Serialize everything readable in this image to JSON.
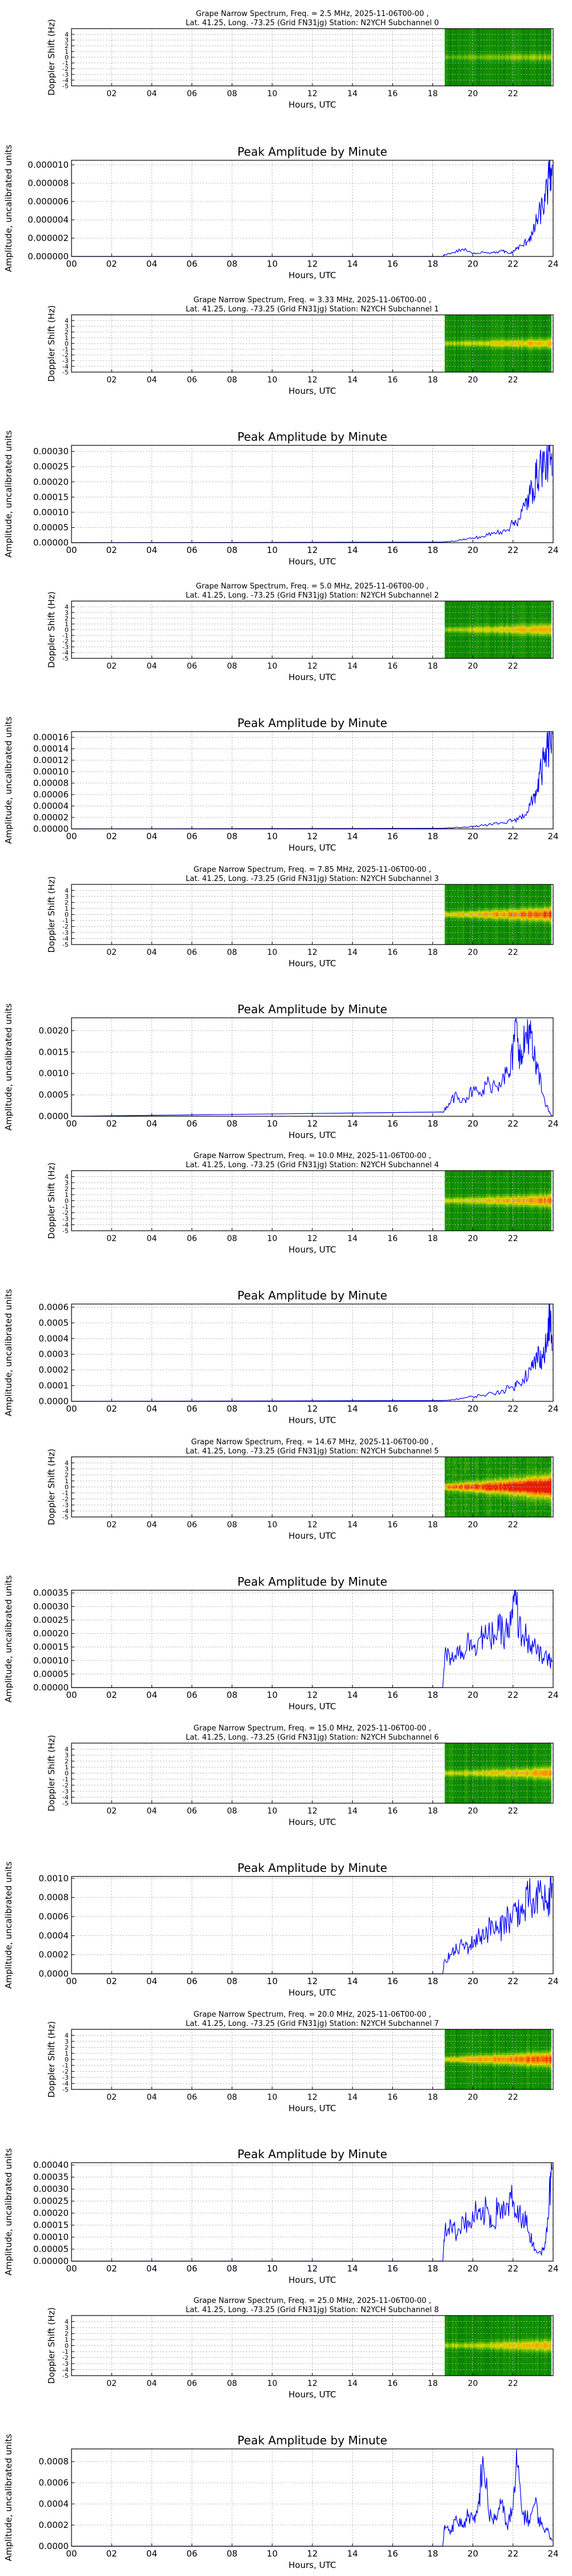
{
  "chart_data": [
    {
      "type": "heatmap",
      "title_line1": "Grape Narrow Spectrum, Freq. = 2.5 MHz, 2025-11-06T00-00 ,",
      "title_line2": "Lat.  41.25, Long. -73.25 (Grid FN31jg) Station: N2YCH Subchannel 0",
      "xlabel": "Hours, UTC",
      "ylabel": "Doppler Shift (Hz)",
      "xticks": [
        "02",
        "04",
        "06",
        "08",
        "10",
        "12",
        "14",
        "16",
        "18",
        "20",
        "22"
      ],
      "yticks": [
        "-5",
        "-4",
        "-3",
        "-2",
        "-1",
        "0",
        "1",
        "2",
        "3",
        "4"
      ],
      "xlim": [
        0,
        24
      ],
      "ylim": [
        -5,
        5
      ],
      "data_start_hour": 18.6,
      "data_end_hour": 23.9,
      "colormap": "green-yellow-red",
      "trace_doppler_hz": 0,
      "trace_intensity": 0.35,
      "spread": 0.15
    },
    {
      "type": "line",
      "title": "Peak Amplitude by Minute",
      "xlabel": "Hours, UTC",
      "ylabel": "Amplitude, uncalibrated units",
      "xticks": [
        "00",
        "02",
        "04",
        "06",
        "08",
        "10",
        "12",
        "14",
        "16",
        "18",
        "20",
        "22",
        "24"
      ],
      "yticks": [
        "0.000000",
        "0.000002",
        "0.000004",
        "0.000006",
        "0.000008",
        "0.000010"
      ],
      "xlim": [
        0,
        24
      ],
      "ylim": [
        0,
        1.05e-05
      ],
      "grid": true,
      "x": [
        0,
        18.5,
        18.6,
        19.0,
        19.5,
        20.0,
        20.5,
        21.0,
        21.5,
        21.8,
        22.0,
        22.2,
        22.5,
        22.8,
        23.0,
        23.2,
        23.4,
        23.6,
        23.8,
        23.95
      ],
      "y": [
        0,
        0,
        2e-07,
        4e-07,
        8e-07,
        3e-07,
        5e-07,
        4e-07,
        6e-07,
        3e-07,
        5e-07,
        9e-07,
        1.2e-06,
        2e-06,
        2.5e-06,
        4e-06,
        5e-06,
        6e-06,
        8.5e-06,
        1e-05
      ]
    },
    {
      "type": "heatmap",
      "title_line1": "Grape Narrow Spectrum, Freq. = 3.33 MHz, 2025-11-06T00-00 ,",
      "title_line2": "Lat.  41.25, Long. -73.25 (Grid FN31jg) Station: N2YCH Subchannel 1",
      "xlabel": "Hours, UTC",
      "ylabel": "Doppler Shift (Hz)",
      "xticks": [
        "02",
        "04",
        "06",
        "08",
        "10",
        "12",
        "14",
        "16",
        "18",
        "20",
        "22"
      ],
      "yticks": [
        "-5",
        "-4",
        "-3",
        "-2",
        "-1",
        "0",
        "1",
        "2",
        "3",
        "4"
      ],
      "xlim": [
        0,
        24
      ],
      "ylim": [
        -5,
        5
      ],
      "data_start_hour": 18.6,
      "data_end_hour": 23.9,
      "colormap": "green-yellow-red",
      "trace_doppler_hz": 0,
      "trace_intensity": 0.55,
      "spread": 0.3
    },
    {
      "type": "line",
      "title": "Peak Amplitude by Minute",
      "xlabel": "Hours, UTC",
      "ylabel": "Amplitude, uncalibrated units",
      "xticks": [
        "00",
        "02",
        "04",
        "06",
        "08",
        "10",
        "12",
        "14",
        "16",
        "18",
        "20",
        "22",
        "24"
      ],
      "yticks": [
        "0.00000",
        "0.00005",
        "0.00010",
        "0.00015",
        "0.00020",
        "0.00025",
        "0.00030"
      ],
      "xlim": [
        0,
        24
      ],
      "ylim": [
        0,
        0.00032
      ],
      "grid": true,
      "x": [
        0,
        18.5,
        19.0,
        19.5,
        20.0,
        20.5,
        21.0,
        21.5,
        22.0,
        22.3,
        22.6,
        22.8,
        23.0,
        23.2,
        23.4,
        23.6,
        23.8,
        23.95
      ],
      "y": [
        0,
        2e-06,
        5e-06,
        1e-05,
        1.5e-05,
        2e-05,
        3e-05,
        4e-05,
        6e-05,
        8e-05,
        0.00012,
        0.00015,
        0.00018,
        0.00022,
        0.00026,
        0.00025,
        0.0003,
        0.00022
      ]
    },
    {
      "type": "heatmap",
      "title_line1": "Grape Narrow Spectrum, Freq. = 5.0 MHz, 2025-11-06T00-00 ,",
      "title_line2": "Lat.  41.25, Long. -73.25 (Grid FN31jg) Station: N2YCH Subchannel 2",
      "xlabel": "Hours, UTC",
      "ylabel": "Doppler Shift (Hz)",
      "xticks": [
        "02",
        "04",
        "06",
        "08",
        "10",
        "12",
        "14",
        "16",
        "18",
        "20",
        "22"
      ],
      "yticks": [
        "-5",
        "-4",
        "-3",
        "-2",
        "-1",
        "0",
        "1",
        "2",
        "3",
        "4"
      ],
      "xlim": [
        0,
        24
      ],
      "ylim": [
        -5,
        5
      ],
      "data_start_hour": 18.6,
      "data_end_hour": 23.9,
      "colormap": "green-yellow-red",
      "trace_doppler_hz": 0,
      "trace_intensity": 0.55,
      "spread": 0.35
    },
    {
      "type": "line",
      "title": "Peak Amplitude by Minute",
      "xlabel": "Hours, UTC",
      "ylabel": "Amplitude, uncalibrated units",
      "xticks": [
        "00",
        "02",
        "04",
        "06",
        "08",
        "10",
        "12",
        "14",
        "16",
        "18",
        "20",
        "22",
        "24"
      ],
      "yticks": [
        "0.00000",
        "0.00002",
        "0.00004",
        "0.00006",
        "0.00008",
        "0.00010",
        "0.00012",
        "0.00014",
        "0.00016"
      ],
      "xlim": [
        0,
        24
      ],
      "ylim": [
        0,
        0.00017
      ],
      "grid": true,
      "x": [
        0,
        18.5,
        19.0,
        19.5,
        20.0,
        20.5,
        21.0,
        21.5,
        22.0,
        22.4,
        22.7,
        23.0,
        23.2,
        23.4,
        23.6,
        23.8,
        23.95
      ],
      "y": [
        0,
        1e-06,
        2e-06,
        3e-06,
        4e-06,
        6e-06,
        8e-06,
        1e-05,
        1.5e-05,
        2e-05,
        3e-05,
        5e-05,
        7e-05,
        0.0001,
        0.00012,
        0.00015,
        0.000165
      ]
    },
    {
      "type": "heatmap",
      "title_line1": "Grape Narrow Spectrum, Freq. = 7.85 MHz, 2025-11-06T00-00 ,",
      "title_line2": "Lat.  41.25, Long. -73.25 (Grid FN31jg) Station: N2YCH Subchannel 3",
      "xlabel": "Hours, UTC",
      "ylabel": "Doppler Shift (Hz)",
      "xticks": [
        "02",
        "04",
        "06",
        "08",
        "10",
        "12",
        "14",
        "16",
        "18",
        "20",
        "22"
      ],
      "yticks": [
        "-5",
        "-4",
        "-3",
        "-2",
        "-1",
        "0",
        "1",
        "2",
        "3",
        "4"
      ],
      "xlim": [
        0,
        24
      ],
      "ylim": [
        -5,
        5
      ],
      "data_start_hour": 18.6,
      "data_end_hour": 23.9,
      "colormap": "green-yellow-red",
      "trace_doppler_hz": 0,
      "trace_intensity": 0.75,
      "spread": 0.45
    },
    {
      "type": "line",
      "title": "Peak Amplitude by Minute",
      "xlabel": "Hours, UTC",
      "ylabel": "Amplitude, uncalibrated units",
      "xticks": [
        "00",
        "02",
        "04",
        "06",
        "08",
        "10",
        "12",
        "14",
        "16",
        "18",
        "20",
        "22",
        "24"
      ],
      "yticks": [
        "0.0000",
        "0.0005",
        "0.0010",
        "0.0015",
        "0.0020"
      ],
      "xlim": [
        0,
        24
      ],
      "ylim": [
        0,
        0.0023
      ],
      "grid": true,
      "x": [
        0,
        18.5,
        18.8,
        19.2,
        19.6,
        20.0,
        20.4,
        20.8,
        21.2,
        21.5,
        21.8,
        22.0,
        22.2,
        22.4,
        22.6,
        22.8,
        23.0,
        23.2,
        23.5,
        23.8,
        23.95
      ],
      "y": [
        0,
        0.0001,
        0.0003,
        0.0005,
        0.0004,
        0.0006,
        0.0005,
        0.0008,
        0.0007,
        0.001,
        0.0009,
        0.0015,
        0.0022,
        0.0012,
        0.0018,
        0.0021,
        0.0014,
        0.0011,
        0.0005,
        0.0001,
        0
      ]
    },
    {
      "type": "heatmap",
      "title_line1": "Grape Narrow Spectrum, Freq. = 10.0 MHz, 2025-11-06T00-00 ,",
      "title_line2": "Lat.  41.25, Long. -73.25 (Grid FN31jg) Station: N2YCH Subchannel 4",
      "xlabel": "Hours, UTC",
      "ylabel": "Doppler Shift (Hz)",
      "xticks": [
        "02",
        "04",
        "06",
        "08",
        "10",
        "12",
        "14",
        "16",
        "18",
        "20",
        "22"
      ],
      "yticks": [
        "-5",
        "-4",
        "-3",
        "-2",
        "-1",
        "0",
        "1",
        "2",
        "3",
        "4"
      ],
      "xlim": [
        0,
        24
      ],
      "ylim": [
        -5,
        5
      ],
      "data_start_hour": 18.6,
      "data_end_hour": 23.9,
      "colormap": "green-yellow-red",
      "trace_doppler_hz": 0,
      "trace_intensity": 0.65,
      "spread": 0.4
    },
    {
      "type": "line",
      "title": "Peak Amplitude by Minute",
      "xlabel": "Hours, UTC",
      "ylabel": "Amplitude, uncalibrated units",
      "xticks": [
        "00",
        "02",
        "04",
        "06",
        "08",
        "10",
        "12",
        "14",
        "16",
        "18",
        "20",
        "22",
        "24"
      ],
      "yticks": [
        "0.0000",
        "0.0001",
        "0.0002",
        "0.0003",
        "0.0004",
        "0.0005",
        "0.0006"
      ],
      "xlim": [
        0,
        24
      ],
      "ylim": [
        0,
        0.00062
      ],
      "grid": true,
      "x": [
        0,
        18.5,
        19.0,
        19.5,
        20.0,
        20.5,
        21.0,
        21.5,
        22.0,
        22.3,
        22.6,
        22.9,
        23.1,
        23.3,
        23.5,
        23.7,
        23.85,
        23.95
      ],
      "y": [
        0,
        5e-06,
        1e-05,
        2e-05,
        3e-05,
        4e-05,
        5e-05,
        7e-05,
        9e-05,
        0.00012,
        0.00016,
        0.0002,
        0.00025,
        0.0003,
        0.00028,
        0.00038,
        0.00055,
        0.00032
      ]
    },
    {
      "type": "heatmap",
      "title_line1": "Grape Narrow Spectrum, Freq. = 14.67 MHz, 2025-11-06T00-00 ,",
      "title_line2": "Lat.  41.25, Long. -73.25 (Grid FN31jg) Station: N2YCH Subchannel 5",
      "xlabel": "Hours, UTC",
      "ylabel": "Doppler Shift (Hz)",
      "xticks": [
        "02",
        "04",
        "06",
        "08",
        "10",
        "12",
        "14",
        "16",
        "18",
        "20",
        "22"
      ],
      "yticks": [
        "-5",
        "-4",
        "-3",
        "-2",
        "-1",
        "0",
        "1",
        "2",
        "3",
        "4"
      ],
      "xlim": [
        0,
        24
      ],
      "ylim": [
        -5,
        5
      ],
      "data_start_hour": 18.6,
      "data_end_hour": 23.9,
      "colormap": "green-yellow-red",
      "trace_doppler_hz": 0,
      "trace_intensity": 1.0,
      "spread": 0.9
    },
    {
      "type": "line",
      "title": "Peak Amplitude by Minute",
      "xlabel": "Hours, UTC",
      "ylabel": "Amplitude, uncalibrated units",
      "xticks": [
        "00",
        "02",
        "04",
        "06",
        "08",
        "10",
        "12",
        "14",
        "16",
        "18",
        "20",
        "22",
        "24"
      ],
      "yticks": [
        "0.00000",
        "0.00005",
        "0.00010",
        "0.00015",
        "0.00020",
        "0.00025",
        "0.00030",
        "0.00035"
      ],
      "xlim": [
        0,
        24
      ],
      "ylim": [
        0,
        0.00036
      ],
      "grid": true,
      "x": [
        0,
        18.5,
        18.6,
        18.9,
        19.2,
        19.5,
        19.8,
        20.1,
        20.4,
        20.7,
        21.0,
        21.3,
        21.6,
        21.9,
        22.1,
        22.3,
        22.6,
        22.9,
        23.2,
        23.5,
        23.8,
        23.95
      ],
      "y": [
        0,
        0,
        0.00012,
        0.00011,
        0.00014,
        0.00013,
        0.00017,
        0.00016,
        0.00019,
        0.00018,
        0.0002,
        0.00021,
        0.0002,
        0.00023,
        0.00034,
        0.00022,
        0.00019,
        0.00016,
        0.00013,
        0.00011,
        0.0001,
        0.0001
      ]
    },
    {
      "type": "heatmap",
      "title_line1": "Grape Narrow Spectrum, Freq. = 15.0 MHz, 2025-11-06T00-00 ,",
      "title_line2": "Lat.  41.25, Long. -73.25 (Grid FN31jg) Station: N2YCH Subchannel 6",
      "xlabel": "Hours, UTC",
      "ylabel": "Doppler Shift (Hz)",
      "xticks": [
        "02",
        "04",
        "06",
        "08",
        "10",
        "12",
        "14",
        "16",
        "18",
        "20",
        "22"
      ],
      "yticks": [
        "-5",
        "-4",
        "-3",
        "-2",
        "-1",
        "0",
        "1",
        "2",
        "3",
        "4"
      ],
      "xlim": [
        0,
        24
      ],
      "ylim": [
        -5,
        5
      ],
      "data_start_hour": 18.6,
      "data_end_hour": 23.9,
      "colormap": "green-yellow-red",
      "trace_doppler_hz": 0,
      "trace_intensity": 0.6,
      "spread": 0.35
    },
    {
      "type": "line",
      "title": "Peak Amplitude by Minute",
      "xlabel": "Hours, UTC",
      "ylabel": "Amplitude, uncalibrated units",
      "xticks": [
        "00",
        "02",
        "04",
        "06",
        "08",
        "10",
        "12",
        "14",
        "16",
        "18",
        "20",
        "22",
        "24"
      ],
      "yticks": [
        "0.0000",
        "0.0002",
        "0.0004",
        "0.0006",
        "0.0008",
        "0.0010"
      ],
      "xlim": [
        0,
        24
      ],
      "ylim": [
        0,
        0.00102
      ],
      "grid": true,
      "x": [
        0,
        18.5,
        18.6,
        18.9,
        19.2,
        19.5,
        19.8,
        20.1,
        20.4,
        20.7,
        21.0,
        21.3,
        21.6,
        21.9,
        22.2,
        22.5,
        22.8,
        23.1,
        23.4,
        23.7,
        23.95
      ],
      "y": [
        0,
        0,
        0.00015,
        0.0002,
        0.00025,
        0.0003,
        0.00028,
        0.00035,
        0.0004,
        0.00045,
        0.0005,
        0.00042,
        0.0006,
        0.00055,
        0.0007,
        0.00062,
        0.0008,
        0.00065,
        0.0009,
        0.00068,
        0.00095
      ]
    },
    {
      "type": "heatmap",
      "title_line1": "Grape Narrow Spectrum, Freq. = 20.0 MHz, 2025-11-06T00-00 ,",
      "title_line2": "Lat.  41.25, Long. -73.25 (Grid FN31jg) Station: N2YCH Subchannel 7",
      "xlabel": "Hours, UTC",
      "ylabel": "Doppler Shift (Hz)",
      "xticks": [
        "02",
        "04",
        "06",
        "08",
        "10",
        "12",
        "14",
        "16",
        "18",
        "20",
        "22"
      ],
      "yticks": [
        "-5",
        "-4",
        "-3",
        "-2",
        "-1",
        "0",
        "1",
        "2",
        "3",
        "4"
      ],
      "xlim": [
        0,
        24
      ],
      "ylim": [
        -5,
        5
      ],
      "data_start_hour": 18.6,
      "data_end_hour": 23.9,
      "colormap": "green-yellow-red",
      "trace_doppler_hz": 0,
      "trace_intensity": 0.75,
      "spread": 0.5
    },
    {
      "type": "line",
      "title": "Peak Amplitude by Minute",
      "xlabel": "Hours, UTC",
      "ylabel": "Amplitude, uncalibrated units",
      "xticks": [
        "00",
        "02",
        "04",
        "06",
        "08",
        "10",
        "12",
        "14",
        "16",
        "18",
        "20",
        "22",
        "24"
      ],
      "yticks": [
        "0.00000",
        "0.00005",
        "0.00010",
        "0.00015",
        "0.00020",
        "0.00025",
        "0.00030",
        "0.00035",
        "0.00040"
      ],
      "xlim": [
        0,
        24
      ],
      "ylim": [
        0,
        0.00041
      ],
      "grid": true,
      "x": [
        0,
        18.5,
        18.6,
        18.9,
        19.2,
        19.5,
        19.8,
        20.1,
        20.4,
        20.7,
        21.0,
        21.3,
        21.6,
        21.9,
        22.2,
        22.5,
        22.8,
        23.1,
        23.4,
        23.6,
        23.8,
        23.95
      ],
      "y": [
        0,
        0,
        0.00012,
        0.00016,
        0.00011,
        0.00018,
        0.00014,
        0.0002,
        0.00017,
        0.00022,
        0.00015,
        0.00024,
        0.00019,
        0.00026,
        0.00018,
        0.0002,
        0.00012,
        5e-05,
        3e-05,
        8e-05,
        0.00025,
        0.00038
      ]
    },
    {
      "type": "heatmap",
      "title_line1": "Grape Narrow Spectrum, Freq. = 25.0 MHz, 2025-11-06T00-00 ,",
      "title_line2": "Lat.  41.25, Long. -73.25 (Grid FN31jg) Station: N2YCH Subchannel 8",
      "xlabel": "Hours, UTC",
      "ylabel": "Doppler Shift (Hz)",
      "xticks": [
        "02",
        "04",
        "06",
        "08",
        "10",
        "12",
        "14",
        "16",
        "18",
        "20",
        "22"
      ],
      "yticks": [
        "-5",
        "-4",
        "-3",
        "-2",
        "-1",
        "0",
        "1",
        "2",
        "3",
        "4"
      ],
      "xlim": [
        0,
        24
      ],
      "ylim": [
        -5,
        5
      ],
      "data_start_hour": 18.6,
      "data_end_hour": 23.9,
      "colormap": "green-yellow-red",
      "trace_doppler_hz": 0,
      "trace_intensity": 0.55,
      "spread": 0.35
    },
    {
      "type": "line",
      "title": "Peak Amplitude by Minute",
      "xlabel": "Hours, UTC",
      "ylabel": "Amplitude, uncalibrated units",
      "xticks": [
        "00",
        "02",
        "04",
        "06",
        "08",
        "10",
        "12",
        "14",
        "16",
        "18",
        "20",
        "22",
        "24"
      ],
      "yticks": [
        "0.0000",
        "0.0002",
        "0.0004",
        "0.0006",
        "0.0008"
      ],
      "xlim": [
        0,
        24
      ],
      "ylim": [
        0,
        0.00092
      ],
      "grid": true,
      "x": [
        0,
        18.5,
        18.6,
        18.9,
        19.2,
        19.5,
        19.8,
        20.1,
        20.3,
        20.5,
        20.8,
        21.1,
        21.4,
        21.7,
        22.0,
        22.2,
        22.5,
        22.8,
        23.1,
        23.4,
        23.7,
        23.95
      ],
      "y": [
        0,
        0,
        0.0002,
        0.00015,
        0.00025,
        0.0002,
        0.0003,
        0.00022,
        0.0004,
        0.00085,
        0.0003,
        0.00025,
        0.0004,
        0.0002,
        0.00035,
        0.00078,
        0.0003,
        0.00025,
        0.0004,
        0.0002,
        0.00015,
        5e-05
      ]
    }
  ]
}
